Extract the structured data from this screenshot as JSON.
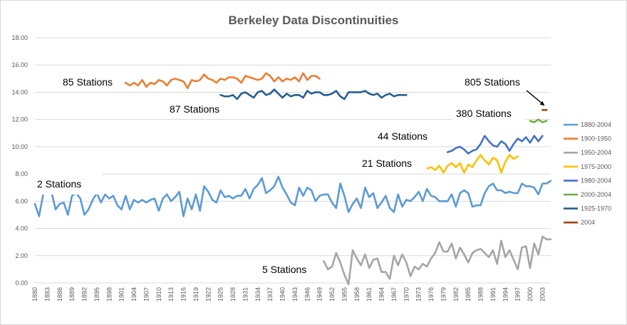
{
  "chart_data": {
    "type": "line",
    "title": "Berkeley Data Discontinuities",
    "xlabel": "",
    "ylabel": "",
    "ylim": [
      0,
      18
    ],
    "xlim": [
      1880,
      2005
    ],
    "y_ticks": [
      "0.00",
      "2.00",
      "4.00",
      "6.00",
      "8.00",
      "10.00",
      "12.00",
      "14.00",
      "16.00",
      "18.00"
    ],
    "x_tick_labels": [
      "1880",
      "1883",
      "1886",
      "1889",
      "1892",
      "1895",
      "1898",
      "1901",
      "1904",
      "1907",
      "1910",
      "1913",
      "1916",
      "1919",
      "1922",
      "1925",
      "1928",
      "1931",
      "1934",
      "1937",
      "1940",
      "1943",
      "1946",
      "1949",
      "1952",
      "1955",
      "1958",
      "1961",
      "1964",
      "1967",
      "1970",
      "1973",
      "1976",
      "1979",
      "1982",
      "1985",
      "1988",
      "1991",
      "1994",
      "1997",
      "2000",
      "2003"
    ],
    "grid": true,
    "legend_position": "right",
    "series": [
      {
        "name": "1880-2004",
        "color": "#5B9BD5",
        "x_start": 1880,
        "values": [
          5.8,
          4.9,
          6.5,
          6.7,
          6.7,
          5.4,
          5.8,
          5.9,
          5.0,
          6.4,
          6.6,
          6.2,
          5.0,
          5.4,
          6.1,
          6.6,
          5.9,
          6.5,
          6.2,
          6.4,
          5.7,
          5.4,
          6.4,
          5.4,
          6.1,
          5.9,
          6.1,
          5.9,
          6.1,
          6.2,
          5.3,
          6.2,
          6.5,
          6.0,
          6.3,
          6.7,
          4.9,
          6.2,
          5.4,
          6.5,
          5.3,
          7.1,
          6.7,
          6.1,
          5.9,
          6.8,
          6.3,
          6.4,
          6.2,
          6.4,
          6.4,
          6.9,
          6.2,
          6.9,
          7.2,
          7.7,
          6.6,
          6.8,
          7.1,
          7.8,
          7.0,
          6.5,
          5.9,
          5.7,
          7.0,
          6.4,
          7.0,
          6.8,
          6.0,
          6.4,
          6.5,
          6.5,
          5.9,
          5.5,
          7.3,
          6.4,
          5.2,
          5.8,
          6.2,
          5.5,
          7.0,
          6.3,
          6.6,
          5.5,
          5.9,
          6.4,
          5.5,
          5.2,
          6.5,
          5.6,
          6.1,
          6.0,
          6.3,
          6.7,
          6.0,
          6.9,
          6.4,
          6.3,
          6.0,
          6.0,
          6.0,
          6.5,
          5.6,
          6.6,
          6.8,
          6.6,
          5.6,
          5.7,
          5.7,
          6.6,
          7.1,
          7.3,
          6.8,
          6.8,
          6.6,
          6.7,
          6.6,
          6.6,
          7.3,
          7.1,
          7.1,
          7.0,
          6.5,
          7.3,
          7.3,
          7.5
        ],
        "label_annotation": "2 Stations"
      },
      {
        "name": "1900-1950",
        "color": "#ED7D31",
        "x_start": 1900,
        "values": [
          14.8,
          14.6,
          14.7,
          14.5,
          14.7,
          14.5,
          14.9,
          14.4,
          14.7,
          14.6,
          14.9,
          14.8,
          14.5,
          14.9,
          15.0,
          14.9,
          14.8,
          14.3,
          14.9,
          14.8,
          14.9,
          15.3,
          15.0,
          14.9,
          14.7,
          15.0,
          14.9,
          15.1,
          15.1,
          15.0,
          14.7,
          15.2,
          15.1,
          15.0,
          14.9,
          15.0,
          15.4,
          15.2,
          14.8,
          15.1,
          14.8,
          15.0,
          14.9,
          15.1,
          14.8,
          15.4,
          14.9,
          15.2,
          15.2,
          15.0
        ],
        "label_annotation": "85 Stations"
      },
      {
        "name": "1950-2004",
        "color": "#A5A5A5",
        "x_start": 1950,
        "values": [
          1.6,
          1.0,
          1.2,
          2.2,
          1.5,
          0.6,
          -0.1,
          2.4,
          1.8,
          1.3,
          2.1,
          1.1,
          1.7,
          1.8,
          0.8,
          0.8,
          0.3,
          2.0,
          1.3,
          2.1,
          1.5,
          0.5,
          1.2,
          1.0,
          1.4,
          1.2,
          1.8,
          2.2,
          3.0,
          2.3,
          2.3,
          2.9,
          1.8,
          2.6,
          2.1,
          1.5,
          2.2,
          2.4,
          2.5,
          2.2,
          1.9,
          2.4,
          1.4,
          3.1,
          1.9,
          2.4,
          1.7,
          1.0,
          2.6,
          2.7,
          1.1,
          2.9,
          2.1,
          3.4,
          3.2,
          3.2
        ],
        "label_annotation": "5 Stations"
      },
      {
        "name": "1975-2000",
        "color": "#FFC000",
        "x_start": 1975,
        "values": [
          8.4,
          8.5,
          8.3,
          8.6,
          8.1,
          8.6,
          8.8,
          8.5,
          8.8,
          8.1,
          8.7,
          8.5,
          9.0,
          9.4,
          9.0,
          8.7,
          9.2,
          9.0,
          8.1,
          8.9,
          9.4,
          9.1,
          9.3
        ],
        "label_annotation": "21 Stations"
      },
      {
        "name": "1980-2004",
        "color": "#4472C4",
        "x_start": 1980,
        "values": [
          9.6,
          9.7,
          9.9,
          10.0,
          9.8,
          9.5,
          9.7,
          9.8,
          10.2,
          10.8,
          10.4,
          10.1,
          10.0,
          10.4,
          10.2,
          9.7,
          10.2,
          10.6,
          10.4,
          10.7,
          10.3,
          10.8,
          10.4,
          10.8
        ],
        "label_annotation": "44 Stations"
      },
      {
        "name": "2000-2004",
        "color": "#70AD47",
        "x_start": 2000,
        "values": [
          11.9,
          11.8,
          12.0,
          11.8,
          11.9
        ],
        "label_annotation": "380 Stations"
      },
      {
        "name": "1925-1970",
        "color": "#255E91",
        "x_start": 1925,
        "values": [
          13.8,
          13.7,
          13.7,
          13.8,
          13.5,
          13.9,
          14.0,
          13.8,
          13.6,
          14.0,
          14.1,
          13.8,
          13.9,
          14.2,
          13.9,
          13.6,
          13.9,
          13.7,
          13.8,
          13.8,
          13.6,
          14.1,
          13.9,
          14.0,
          14.0,
          13.8,
          13.8,
          13.9,
          14.1,
          13.7,
          13.5,
          14.0,
          14.0,
          14.0,
          14.0,
          14.1,
          13.9,
          13.8,
          13.9,
          13.6,
          13.8,
          13.9,
          13.7,
          13.8,
          13.8,
          13.8
        ],
        "label_annotation": "87 Stations"
      },
      {
        "name": "2004",
        "color": "#9E480E",
        "x_start": 2003,
        "values": [
          12.7,
          12.7
        ],
        "label_annotation": "805 Stations"
      }
    ]
  }
}
